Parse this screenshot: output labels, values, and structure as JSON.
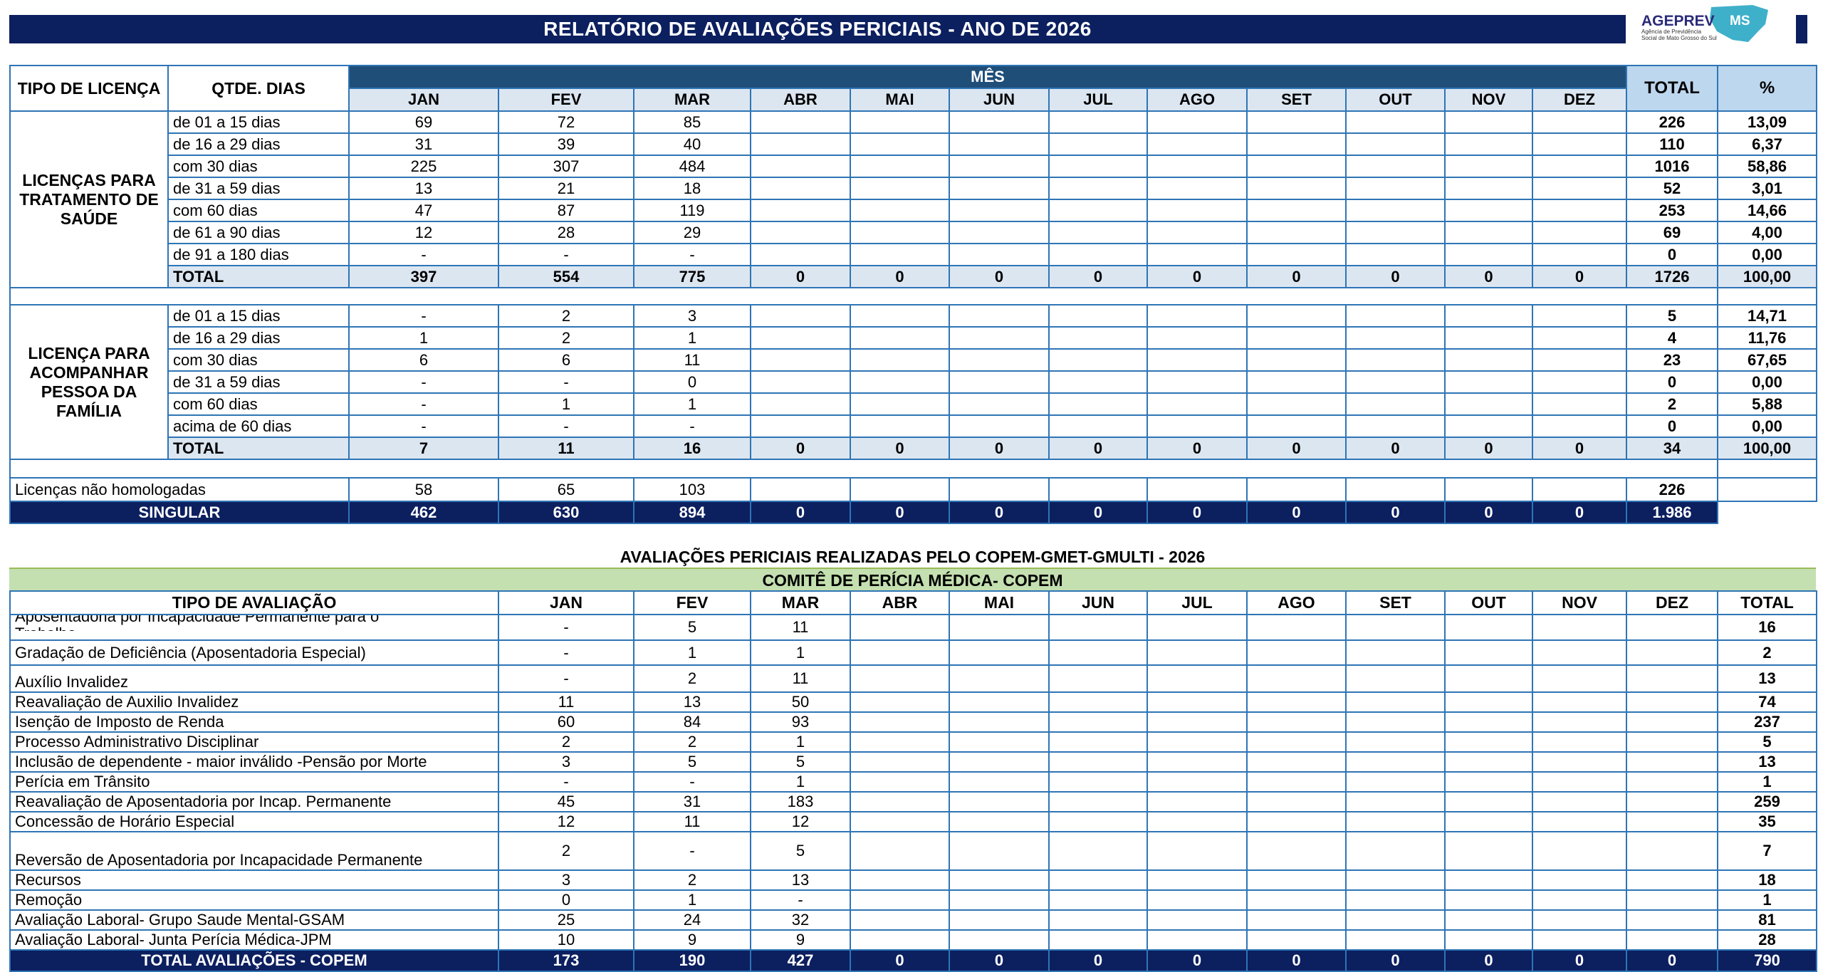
{
  "title": "RELATÓRIO DE AVALIAÇÕES PERICIAIS  -  ANO DE 2026",
  "logo": {
    "text": "AGEPREV",
    "badge": "MS",
    "subtitle1": "Agência de Previdência",
    "subtitle2": "Social de Mato Grosso do Sul"
  },
  "colors": {
    "navy": "#0c1f5f",
    "month_header": "#1f4e79",
    "light_blue": "#dce6f1",
    "total_header": "#bdd7ee",
    "green_band": "#c4dfb0",
    "grid": "#2e75b6"
  },
  "table1": {
    "headers": {
      "tipo": "TIPO DE LICENÇA",
      "qtde": "QTDE. DIAS",
      "mes": "MÊS",
      "total": "TOTAL",
      "pct": "%"
    },
    "months": [
      "JAN",
      "FEV",
      "MAR",
      "ABR",
      "MAI",
      "JUN",
      "JUL",
      "AGO",
      "SET",
      "OUT",
      "NOV",
      "DEZ"
    ],
    "groups": [
      {
        "label": "LICENÇAS PARA TRATAMENTO DE SAÚDE",
        "rows": [
          {
            "qtde": "de 01 a 15 dias",
            "values": [
              "69",
              "72",
              "85",
              "",
              "",
              "",
              "",
              "",
              "",
              "",
              "",
              ""
            ],
            "total": "226",
            "pct": "13,09"
          },
          {
            "qtde": "de 16 a 29 dias",
            "values": [
              "31",
              "39",
              "40",
              "",
              "",
              "",
              "",
              "",
              "",
              "",
              "",
              ""
            ],
            "total": "110",
            "pct": "6,37"
          },
          {
            "qtde": "com 30 dias",
            "values": [
              "225",
              "307",
              "484",
              "",
              "",
              "",
              "",
              "",
              "",
              "",
              "",
              ""
            ],
            "total": "1016",
            "pct": "58,86"
          },
          {
            "qtde": "de 31 a 59 dias",
            "values": [
              "13",
              "21",
              "18",
              "",
              "",
              "",
              "",
              "",
              "",
              "",
              "",
              ""
            ],
            "total": "52",
            "pct": "3,01"
          },
          {
            "qtde": "com 60 dias",
            "values": [
              "47",
              "87",
              "119",
              "",
              "",
              "",
              "",
              "",
              "",
              "",
              "",
              ""
            ],
            "total": "253",
            "pct": "14,66"
          },
          {
            "qtde": "de 61 a 90 dias",
            "values": [
              "12",
              "28",
              "29",
              "",
              "",
              "",
              "",
              "",
              "",
              "",
              "",
              ""
            ],
            "total": "69",
            "pct": "4,00"
          },
          {
            "qtde": "de 91 a 180 dias",
            "values": [
              "-",
              "-",
              "-",
              "",
              "",
              "",
              "",
              "",
              "",
              "",
              "",
              ""
            ],
            "total": "0",
            "pct": "0,00"
          }
        ],
        "total_row": {
          "label": "TOTAL",
          "values": [
            "397",
            "554",
            "775",
            "0",
            "0",
            "0",
            "0",
            "0",
            "0",
            "0",
            "0",
            "0"
          ],
          "total": "1726",
          "pct": "100,00"
        }
      },
      {
        "label": "LICENÇA PARA ACOMPANHAR PESSOA DA FAMÍLIA",
        "rows": [
          {
            "qtde": "de 01 a 15 dias",
            "values": [
              "-",
              "2",
              "3",
              "",
              "",
              "",
              "",
              "",
              "",
              "",
              "",
              ""
            ],
            "total": "5",
            "pct": "14,71"
          },
          {
            "qtde": "de 16 a 29 dias",
            "values": [
              "1",
              "2",
              "1",
              "",
              "",
              "",
              "",
              "",
              "",
              "",
              "",
              ""
            ],
            "total": "4",
            "pct": "11,76"
          },
          {
            "qtde": "com 30 dias",
            "values": [
              "6",
              "6",
              "11",
              "",
              "",
              "",
              "",
              "",
              "",
              "",
              "",
              ""
            ],
            "total": "23",
            "pct": "67,65"
          },
          {
            "qtde": "de 31 a 59 dias",
            "values": [
              "-",
              "-",
              "0",
              "",
              "",
              "",
              "",
              "",
              "",
              "",
              "",
              ""
            ],
            "total": "0",
            "pct": "0,00"
          },
          {
            "qtde": "com 60 dias",
            "values": [
              "-",
              "1",
              "1",
              "",
              "",
              "",
              "",
              "",
              "",
              "",
              "",
              ""
            ],
            "total": "2",
            "pct": "5,88"
          },
          {
            "qtde": "acima de 60 dias",
            "values": [
              "-",
              "-",
              "-",
              "",
              "",
              "",
              "",
              "",
              "",
              "",
              "",
              ""
            ],
            "total": "0",
            "pct": "0,00"
          }
        ],
        "total_row": {
          "label": "TOTAL",
          "values": [
            "7",
            "11",
            "16",
            "0",
            "0",
            "0",
            "0",
            "0",
            "0",
            "0",
            "0",
            "0"
          ],
          "total": "34",
          "pct": "100,00"
        }
      }
    ],
    "nao_homologadas": {
      "label": "Licenças não homologadas",
      "values": [
        "58",
        "65",
        "103",
        "",
        "",
        "",
        "",
        "",
        "",
        "",
        "",
        ""
      ],
      "total": "226"
    },
    "singular": {
      "label": "SINGULAR",
      "values": [
        "462",
        "630",
        "894",
        "0",
        "0",
        "0",
        "0",
        "0",
        "0",
        "0",
        "0",
        "0"
      ],
      "total": "1.986"
    }
  },
  "table2": {
    "title": "AVALIAÇÕES PERICIAIS REALIZADAS PELO  COPEM-GMET-GMULTI -  2026",
    "band": "COMITÊ DE PERÍCIA MÉDICA- COPEM",
    "headers": {
      "tipo": "TIPO DE AVALIAÇÃO",
      "total": "TOTAL"
    },
    "months": [
      "JAN",
      "FEV",
      "MAR",
      "ABR",
      "MAI",
      "JUN",
      "JUL",
      "AGO",
      "SET",
      "OUT",
      "NOV",
      "DEZ"
    ],
    "rows": [
      {
        "label": "Aposentadoria por Incapacidade Permanente para o Trabalho",
        "values": [
          "-",
          "5",
          "11",
          "",
          "",
          "",
          "",
          "",
          "",
          "",
          "",
          ""
        ],
        "total": "16"
      },
      {
        "label": "Gradação de Deficiência (Aposentadoria Especial)",
        "values": [
          "-",
          "1",
          "1",
          "",
          "",
          "",
          "",
          "",
          "",
          "",
          "",
          ""
        ],
        "total": "2"
      },
      {
        "label": "Auxílio Invalidez",
        "values": [
          "-",
          "2",
          "11",
          "",
          "",
          "",
          "",
          "",
          "",
          "",
          "",
          ""
        ],
        "total": "13"
      },
      {
        "label": "Reavaliação de Auxilio Invalidez",
        "values": [
          "11",
          "13",
          "50",
          "",
          "",
          "",
          "",
          "",
          "",
          "",
          "",
          ""
        ],
        "total": "74"
      },
      {
        "label": "Isenção de Imposto de Renda",
        "values": [
          "60",
          "84",
          "93",
          "",
          "",
          "",
          "",
          "",
          "",
          "",
          "",
          ""
        ],
        "total": "237"
      },
      {
        "label": "Processo Administrativo Disciplinar",
        "values": [
          "2",
          "2",
          "1",
          "",
          "",
          "",
          "",
          "",
          "",
          "",
          "",
          ""
        ],
        "total": "5"
      },
      {
        "label": "Inclusão de dependente - maior inválido -Pensão por Morte",
        "values": [
          "3",
          "5",
          "5",
          "",
          "",
          "",
          "",
          "",
          "",
          "",
          "",
          ""
        ],
        "total": "13"
      },
      {
        "label": "Perícia em Trânsito",
        "values": [
          "-",
          "-",
          "1",
          "",
          "",
          "",
          "",
          "",
          "",
          "",
          "",
          ""
        ],
        "total": "1"
      },
      {
        "label": "Reavaliação de Aposentadoria por Incap. Permanente",
        "values": [
          "45",
          "31",
          "183",
          "",
          "",
          "",
          "",
          "",
          "",
          "",
          "",
          ""
        ],
        "total": "259"
      },
      {
        "label": "Concessão de Horário Especial",
        "values": [
          "12",
          "11",
          "12",
          "",
          "",
          "",
          "",
          "",
          "",
          "",
          "",
          ""
        ],
        "total": "35"
      },
      {
        "label": "Reversão de Aposentadoria por Incapacidade Permanente",
        "values": [
          "2",
          "-",
          "5",
          "",
          "",
          "",
          "",
          "",
          "",
          "",
          "",
          ""
        ],
        "total": "7"
      },
      {
        "label": "Recursos",
        "values": [
          "3",
          "2",
          "13",
          "",
          "",
          "",
          "",
          "",
          "",
          "",
          "",
          ""
        ],
        "total": "18"
      },
      {
        "label": "Remoção",
        "values": [
          "0",
          "1",
          "-",
          "",
          "",
          "",
          "",
          "",
          "",
          "",
          "",
          ""
        ],
        "total": "1"
      },
      {
        "label": "Avaliação Laboral- Grupo Saude Mental-GSAM",
        "values": [
          "25",
          "24",
          "32",
          "",
          "",
          "",
          "",
          "",
          "",
          "",
          "",
          ""
        ],
        "total": "81"
      },
      {
        "label": "Avaliação  Laboral- Junta Perícia Médica-JPM",
        "values": [
          "10",
          "9",
          "9",
          "",
          "",
          "",
          "",
          "",
          "",
          "",
          "",
          ""
        ],
        "total": "28"
      }
    ],
    "total_row": {
      "label": "TOTAL AVALIAÇÕES - COPEM",
      "values": [
        "173",
        "190",
        "427",
        "0",
        "0",
        "0",
        "0",
        "0",
        "0",
        "0",
        "0",
        "0"
      ],
      "total": "790"
    }
  }
}
